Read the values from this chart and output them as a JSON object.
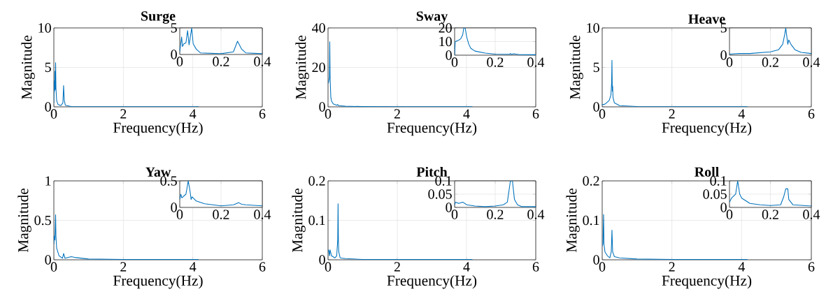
{
  "chart_data": [
    {
      "type": "line",
      "title": "Surge",
      "xlabel": "Frequency(Hz)",
      "ylabel": "Magnitude",
      "color": "#0072bd",
      "grid": true,
      "xlim": [
        0,
        6
      ],
      "ylim": [
        0,
        10
      ],
      "xticks": [
        0,
        2,
        4,
        6
      ],
      "yticks": [
        0,
        5,
        10
      ],
      "x": [
        0,
        0.01,
        0.02,
        0.03,
        0.04,
        0.05,
        0.06,
        0.08,
        0.12,
        0.2,
        0.26,
        0.28,
        0.3,
        0.33,
        0.5,
        1,
        2,
        3,
        4.17
      ],
      "values": [
        0.5,
        3.3,
        2.0,
        4.5,
        2.2,
        5.6,
        2.4,
        0.8,
        0.3,
        0.15,
        0.5,
        2.7,
        0.8,
        0.2,
        0.05,
        0.02,
        0.01,
        0.01,
        0.01
      ]
    },
    {
      "type": "line",
      "color": "#0072bd",
      "grid": true,
      "xlim": [
        0,
        0.4
      ],
      "ylim": [
        0,
        5
      ],
      "xticks": [
        0,
        0.2,
        0.4
      ],
      "yticks": [
        0,
        5
      ],
      "x": [
        0,
        0.009,
        0.013,
        0.02,
        0.03,
        0.038,
        0.045,
        0.05,
        0.058,
        0.065,
        0.08,
        0.1,
        0.2,
        0.26,
        0.28,
        0.3,
        0.32,
        0.4
      ],
      "values": [
        0.5,
        3.3,
        1.5,
        2.0,
        2.2,
        4.5,
        1.8,
        3.0,
        5,
        2.0,
        1.0,
        0.3,
        0.15,
        0.5,
        2.5,
        1.0,
        0.3,
        0.15
      ]
    },
    {
      "type": "line",
      "title": "Sway",
      "xlabel": "Frequency(Hz)",
      "ylabel": "Magnitude",
      "color": "#0072bd",
      "grid": true,
      "xlim": [
        0,
        6
      ],
      "ylim": [
        0,
        40
      ],
      "xticks": [
        0,
        2,
        4,
        6
      ],
      "yticks": [
        0,
        20,
        40
      ],
      "x": [
        0,
        0.02,
        0.04,
        0.05,
        0.06,
        0.08,
        0.1,
        0.15,
        0.25,
        0.28,
        0.3,
        0.5,
        1,
        2,
        3,
        4.17
      ],
      "values": [
        12,
        12.5,
        15,
        33,
        15,
        5,
        3,
        1.5,
        0.8,
        1.2,
        0.6,
        0.3,
        0.15,
        0.08,
        0.05,
        0.05
      ]
    },
    {
      "type": "line",
      "color": "#0072bd",
      "grid": true,
      "xlim": [
        0,
        0.4
      ],
      "ylim": [
        0,
        20
      ],
      "xticks": [
        0,
        0.2,
        0.4
      ],
      "yticks": [
        0,
        10,
        20
      ],
      "x": [
        0,
        0.003,
        0.02,
        0.03,
        0.04,
        0.045,
        0.052,
        0.06,
        0.07,
        0.08,
        0.1,
        0.15,
        0.2,
        0.27,
        0.275,
        0.28,
        0.29,
        0.32,
        0.4
      ],
      "values": [
        0,
        10,
        11,
        12,
        15,
        20,
        20,
        13,
        8,
        5,
        3,
        1.5,
        0.8,
        0.6,
        1.2,
        0.5,
        1.0,
        0.4,
        0.3
      ]
    },
    {
      "type": "line",
      "title": "Heave",
      "xlabel": "Frequency(Hz)",
      "ylabel": "Magnitude",
      "color": "#0072bd",
      "grid": true,
      "xlim": [
        0,
        6
      ],
      "ylim": [
        0,
        10
      ],
      "xticks": [
        0,
        2,
        4,
        6
      ],
      "yticks": [
        0,
        5,
        10
      ],
      "x": [
        0,
        0.05,
        0.1,
        0.2,
        0.25,
        0.27,
        0.28,
        0.29,
        0.3,
        0.31,
        0.35,
        0.5,
        1,
        2,
        4.17
      ],
      "values": [
        0.3,
        0.3,
        0.4,
        0.8,
        1.5,
        3,
        5.9,
        2,
        2.6,
        1.2,
        0.5,
        0.15,
        0.05,
        0.02,
        0.01
      ]
    },
    {
      "type": "line",
      "color": "#0072bd",
      "grid": true,
      "xlim": [
        0,
        0.4
      ],
      "ylim": [
        0,
        5
      ],
      "xticks": [
        0,
        0.2,
        0.4
      ],
      "yticks": [
        0,
        5
      ],
      "x": [
        0,
        0.05,
        0.1,
        0.2,
        0.24,
        0.26,
        0.27,
        0.275,
        0.28,
        0.285,
        0.29,
        0.3,
        0.32,
        0.35,
        0.4
      ],
      "values": [
        0.2,
        0.3,
        0.3,
        0.6,
        1.0,
        2,
        3.8,
        5,
        3.5,
        2,
        2.8,
        2,
        1,
        0.5,
        0.3
      ]
    },
    {
      "type": "line",
      "title": "Yaw",
      "xlabel": "Frequency(Hz)",
      "ylabel": "Magnitude",
      "color": "#0072bd",
      "grid": true,
      "xlim": [
        0,
        6
      ],
      "ylim": [
        0,
        1
      ],
      "xticks": [
        0,
        2,
        4,
        6
      ],
      "yticks": [
        0,
        0.5,
        1
      ],
      "x": [
        0,
        0.01,
        0.03,
        0.05,
        0.06,
        0.08,
        0.15,
        0.25,
        0.28,
        0.32,
        0.5,
        0.6,
        1,
        2,
        4.17
      ],
      "values": [
        0.2,
        0.3,
        0.25,
        0.57,
        0.3,
        0.15,
        0.05,
        0.02,
        0.08,
        0.02,
        0.04,
        0.03,
        0.01,
        0.005,
        0.005
      ]
    },
    {
      "type": "line",
      "color": "#0072bd",
      "grid": true,
      "xlim": [
        0,
        0.4
      ],
      "ylim": [
        0,
        0.5
      ],
      "xticks": [
        0,
        0.2,
        0.4
      ],
      "yticks": [
        0,
        0.5
      ],
      "x": [
        0,
        0.005,
        0.01,
        0.03,
        0.041,
        0.05,
        0.055,
        0.06,
        0.08,
        0.12,
        0.2,
        0.26,
        0.285,
        0.3,
        0.32,
        0.4
      ],
      "values": [
        0.15,
        0.25,
        0.18,
        0.25,
        0.5,
        0.3,
        0.15,
        0.2,
        0.12,
        0.07,
        0.03,
        0.05,
        0.09,
        0.06,
        0.05,
        0.03
      ]
    },
    {
      "type": "line",
      "title": "Pitch",
      "xlabel": "Frequency(Hz)",
      "ylabel": "Magnitude",
      "color": "#0072bd",
      "grid": true,
      "xlim": [
        0,
        6
      ],
      "ylim": [
        0,
        0.2
      ],
      "xticks": [
        0,
        2,
        4,
        6
      ],
      "yticks": [
        0,
        0.1,
        0.2
      ],
      "x": [
        0,
        0.02,
        0.04,
        0.06,
        0.1,
        0.2,
        0.25,
        0.28,
        0.29,
        0.3,
        0.31,
        0.35,
        0.5,
        1,
        2,
        4.17
      ],
      "values": [
        0.02,
        0.025,
        0.01,
        0.025,
        0.01,
        0.005,
        0.01,
        0.05,
        0.142,
        0.045,
        0.02,
        0.005,
        0.003,
        0.001,
        0.001,
        0.001
      ]
    },
    {
      "type": "line",
      "color": "#0072bd",
      "grid": true,
      "xlim": [
        0,
        0.4
      ],
      "ylim": [
        0,
        0.1
      ],
      "xticks": [
        0,
        0.2,
        0.4
      ],
      "yticks": [
        0,
        0.05,
        0.1
      ],
      "x": [
        0,
        0.005,
        0.02,
        0.04,
        0.06,
        0.1,
        0.15,
        0.2,
        0.24,
        0.26,
        0.275,
        0.285,
        0.295,
        0.31,
        0.33,
        0.4
      ],
      "values": [
        0.01,
        0.02,
        0.015,
        0.02,
        0.01,
        0.005,
        0.003,
        0.005,
        0.01,
        0.02,
        0.1,
        0.1,
        0.03,
        0.01,
        0.003,
        0.003
      ]
    },
    {
      "type": "line",
      "title": "Roll",
      "xlabel": "Frequency(Hz)",
      "ylabel": "Magnitude",
      "color": "#0072bd",
      "grid": true,
      "xlim": [
        0,
        6
      ],
      "ylim": [
        0,
        0.2
      ],
      "xticks": [
        0,
        2,
        4,
        6
      ],
      "yticks": [
        0,
        0.1,
        0.2
      ],
      "x": [
        0,
        0.02,
        0.04,
        0.05,
        0.08,
        0.15,
        0.22,
        0.26,
        0.28,
        0.3,
        0.35,
        0.5,
        1,
        2,
        4.17
      ],
      "values": [
        0.035,
        0.04,
        0.115,
        0.04,
        0.02,
        0.01,
        0.005,
        0.02,
        0.075,
        0.02,
        0.008,
        0.005,
        0.002,
        0.001,
        0.001
      ]
    },
    {
      "type": "line",
      "color": "#0072bd",
      "grid": true,
      "xlim": [
        0,
        0.4
      ],
      "ylim": [
        0,
        0.1
      ],
      "xticks": [
        0,
        0.2,
        0.4
      ],
      "yticks": [
        0,
        0.05,
        0.1
      ],
      "x": [
        0,
        0.01,
        0.03,
        0.04,
        0.05,
        0.06,
        0.1,
        0.15,
        0.2,
        0.25,
        0.265,
        0.275,
        0.285,
        0.29,
        0.31,
        0.4
      ],
      "values": [
        0.02,
        0.035,
        0.05,
        0.1,
        0.05,
        0.035,
        0.015,
        0.01,
        0.007,
        0.01,
        0.04,
        0.07,
        0.07,
        0.03,
        0.01,
        0.005
      ]
    }
  ]
}
